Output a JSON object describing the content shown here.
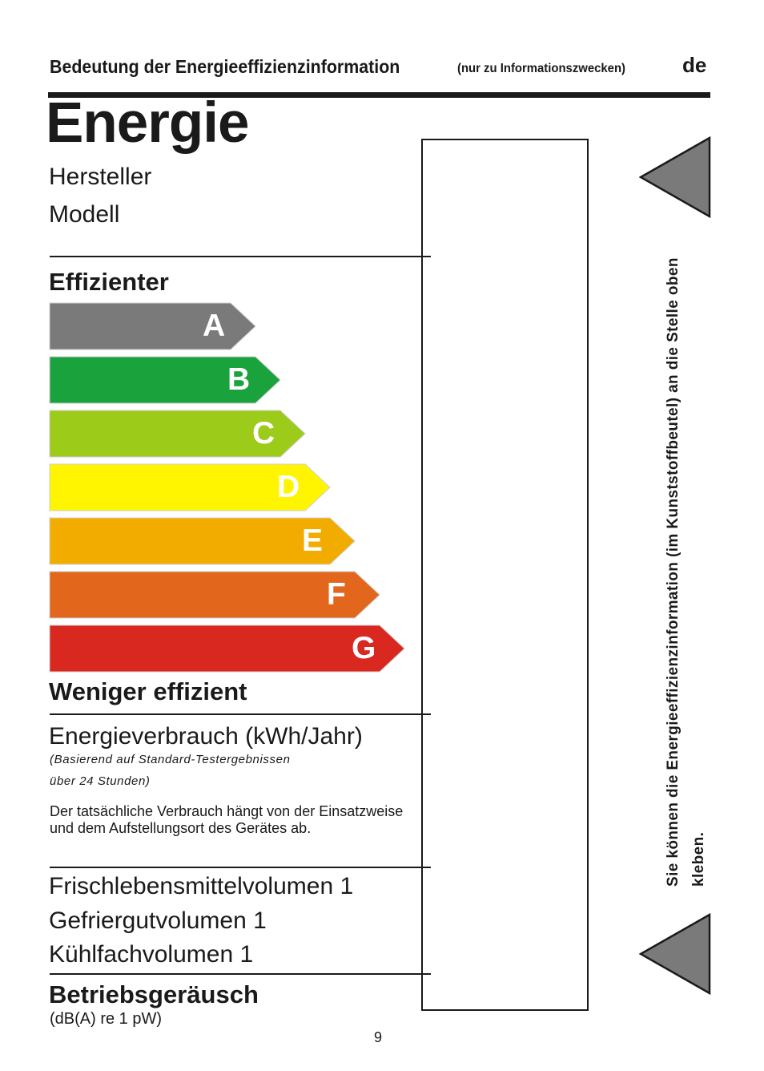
{
  "header": {
    "title": "Bedeutung der Energieeffizienzinformation",
    "note": "(nur zu Informationszwecken)",
    "lang": "de"
  },
  "label": {
    "title": "Energie",
    "manufacturer": "Hersteller",
    "model": "Modell",
    "more_efficient": "Effizienter",
    "less_efficient": "Weniger effizient",
    "classes": [
      {
        "letter": "A",
        "color": "#7b7a7a"
      },
      {
        "letter": "B",
        "color": "#1aa33d"
      },
      {
        "letter": "C",
        "color": "#9ccb19"
      },
      {
        "letter": "D",
        "color": "#fff500"
      },
      {
        "letter": "E",
        "color": "#f2ac00"
      },
      {
        "letter": "F",
        "color": "#e2661b"
      },
      {
        "letter": "G",
        "color": "#d9281f"
      }
    ],
    "consumption": "Energieverbrauch (kWh/Jahr)",
    "consumption_note_1": "(Basierend auf Standard-Testergebnissen",
    "consumption_note_2": "über 24 Stunden)",
    "actual_note": "Der tatsächliche Verbrauch hängt von der Einsatzweise und dem Aufstellungsort des Gerätes ab.",
    "fresh_volume": "Frischlebensmittelvolumen 1",
    "freezer_volume": "Gefriergutvolumen 1",
    "chiller_volume": "Kühlfachvolumen 1",
    "noise": "Betriebsgeräusch",
    "noise_unit": "(dB(A) re 1 pW)"
  },
  "side_instruction": "Sie können die Energieeffizienzinformation (im Kunststoffbeutel) an die Stelle oben kleben.",
  "page_number": "9",
  "colors": {
    "triangle": "#7b7a7a",
    "ink": "#1a1a1a"
  }
}
